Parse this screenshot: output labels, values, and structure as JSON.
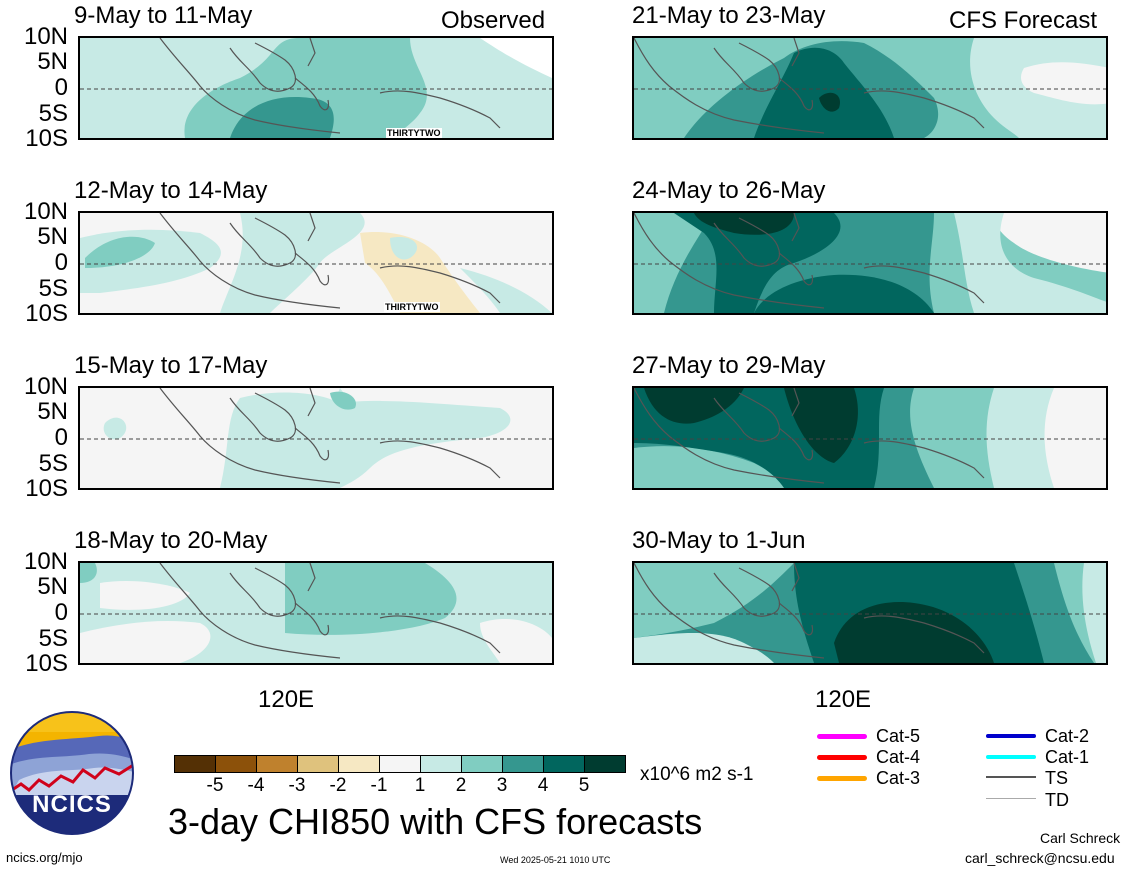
{
  "observed_label": "Observed",
  "forecast_label": "CFS Forecast",
  "lat_labels": [
    "10N",
    "5N",
    "0",
    "5S",
    "10S"
  ],
  "lon_label": "120E",
  "panels_left": [
    {
      "title": "9-May to 11-May",
      "storm": "THIRTYTWO"
    },
    {
      "title": "12-May to 14-May",
      "storm": "THIRTYTWO"
    },
    {
      "title": "15-May to 17-May",
      "storm": ""
    },
    {
      "title": "18-May to 20-May",
      "storm": ""
    }
  ],
  "panels_right": [
    {
      "title": "21-May to 23-May"
    },
    {
      "title": "24-May to 26-May"
    },
    {
      "title": "27-May to 29-May"
    },
    {
      "title": "30-May to 1-Jun"
    }
  ],
  "colorbar": {
    "labels": [
      "-5",
      "-4",
      "-3",
      "-2",
      "-1",
      "1",
      "2",
      "3",
      "4",
      "5"
    ],
    "colors": [
      "#543005",
      "#8c510a",
      "#bf812d",
      "#dfc27d",
      "#f6e8c3",
      "#f5f5f5",
      "#c7eae5",
      "#80cdc1",
      "#35978f",
      "#01665e",
      "#003c30"
    ],
    "units": "x10^6 m2 s-1"
  },
  "legend": {
    "items": [
      {
        "label": "Cat-5",
        "color": "#ff00ff"
      },
      {
        "label": "Cat-4",
        "color": "#ff0000"
      },
      {
        "label": "Cat-3",
        "color": "#ffa500"
      },
      {
        "label": "Cat-2",
        "color": "#0000cc"
      },
      {
        "label": "Cat-1",
        "color": "#00ffff"
      },
      {
        "label": "TS",
        "color": "#555555"
      },
      {
        "label": "TD",
        "color": "#aaaaaa"
      }
    ]
  },
  "logo_text": "NCICS",
  "main_title": "3-day CHI850 with CFS forecasts",
  "footer": {
    "url": "ncics.org/mjo",
    "timestamp": "Wed 2025-05-21 1010 UTC",
    "author": "Carl Schreck",
    "email": "carl_schreck@ncsu.edu"
  }
}
